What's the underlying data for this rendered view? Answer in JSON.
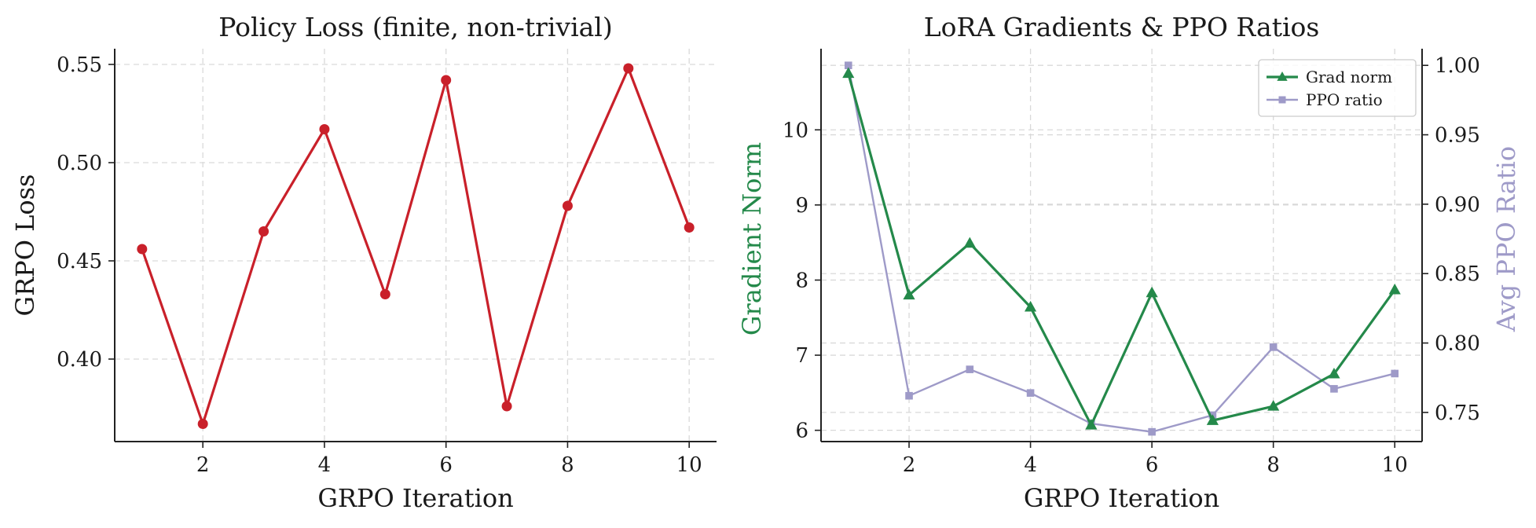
{
  "chart_data": [
    {
      "type": "line",
      "title": "Policy Loss (finite, non-trivial)",
      "xlabel": "GRPO Iteration",
      "ylabel": "GRPO Loss",
      "xlim": [
        0.55,
        10.45
      ],
      "ylim": [
        0.358,
        0.558
      ],
      "xticks": [
        2,
        4,
        6,
        8,
        10
      ],
      "yticks": [
        0.4,
        0.45,
        0.5,
        0.55
      ],
      "ytick_labels": [
        "0.40",
        "0.45",
        "0.50",
        "0.55"
      ],
      "grid": true,
      "series": [
        {
          "color": "#c9202a",
          "marker": "circle",
          "x": [
            1,
            2,
            3,
            4,
            5,
            6,
            7,
            8,
            9,
            10
          ],
          "y": [
            0.456,
            0.367,
            0.465,
            0.517,
            0.433,
            0.542,
            0.376,
            0.478,
            0.548,
            0.467
          ]
        }
      ]
    },
    {
      "type": "line",
      "title": "LoRA Gradients & PPO Ratios",
      "xlabel": "GRPO Iteration",
      "ylabel": "Gradient Norm",
      "ylabel_right": "Avg PPO Ratio",
      "xlim": [
        0.55,
        10.45
      ],
      "ylim": [
        5.85,
        11.08
      ],
      "ylim_right": [
        0.729,
        1.012
      ],
      "xticks": [
        2,
        4,
        6,
        8,
        10
      ],
      "yticks": [
        6,
        7,
        8,
        9,
        10
      ],
      "yticks_right": [
        0.75,
        0.8,
        0.85,
        0.9,
        0.95,
        1.0
      ],
      "ytick_labels_right": [
        "0.75",
        "0.80",
        "0.85",
        "0.90",
        "0.95",
        "1.00"
      ],
      "grid": true,
      "legend": "top-right",
      "series": [
        {
          "name": "Grad norm",
          "axis": "left",
          "color": "#24894a",
          "marker": "triangle",
          "x": [
            1,
            2,
            3,
            4,
            5,
            6,
            7,
            8,
            9,
            10
          ],
          "y": [
            10.75,
            7.8,
            8.49,
            7.64,
            6.07,
            7.83,
            6.13,
            6.32,
            6.75,
            7.87
          ]
        },
        {
          "name": "PPO ratio",
          "axis": "right",
          "color": "#9e9ac8",
          "marker": "square",
          "x": [
            1,
            2,
            3,
            4,
            5,
            6,
            7,
            8,
            9,
            10
          ],
          "y": [
            1.0,
            0.762,
            0.781,
            0.764,
            0.742,
            0.736,
            0.748,
            0.797,
            0.767,
            0.778
          ]
        }
      ]
    }
  ]
}
